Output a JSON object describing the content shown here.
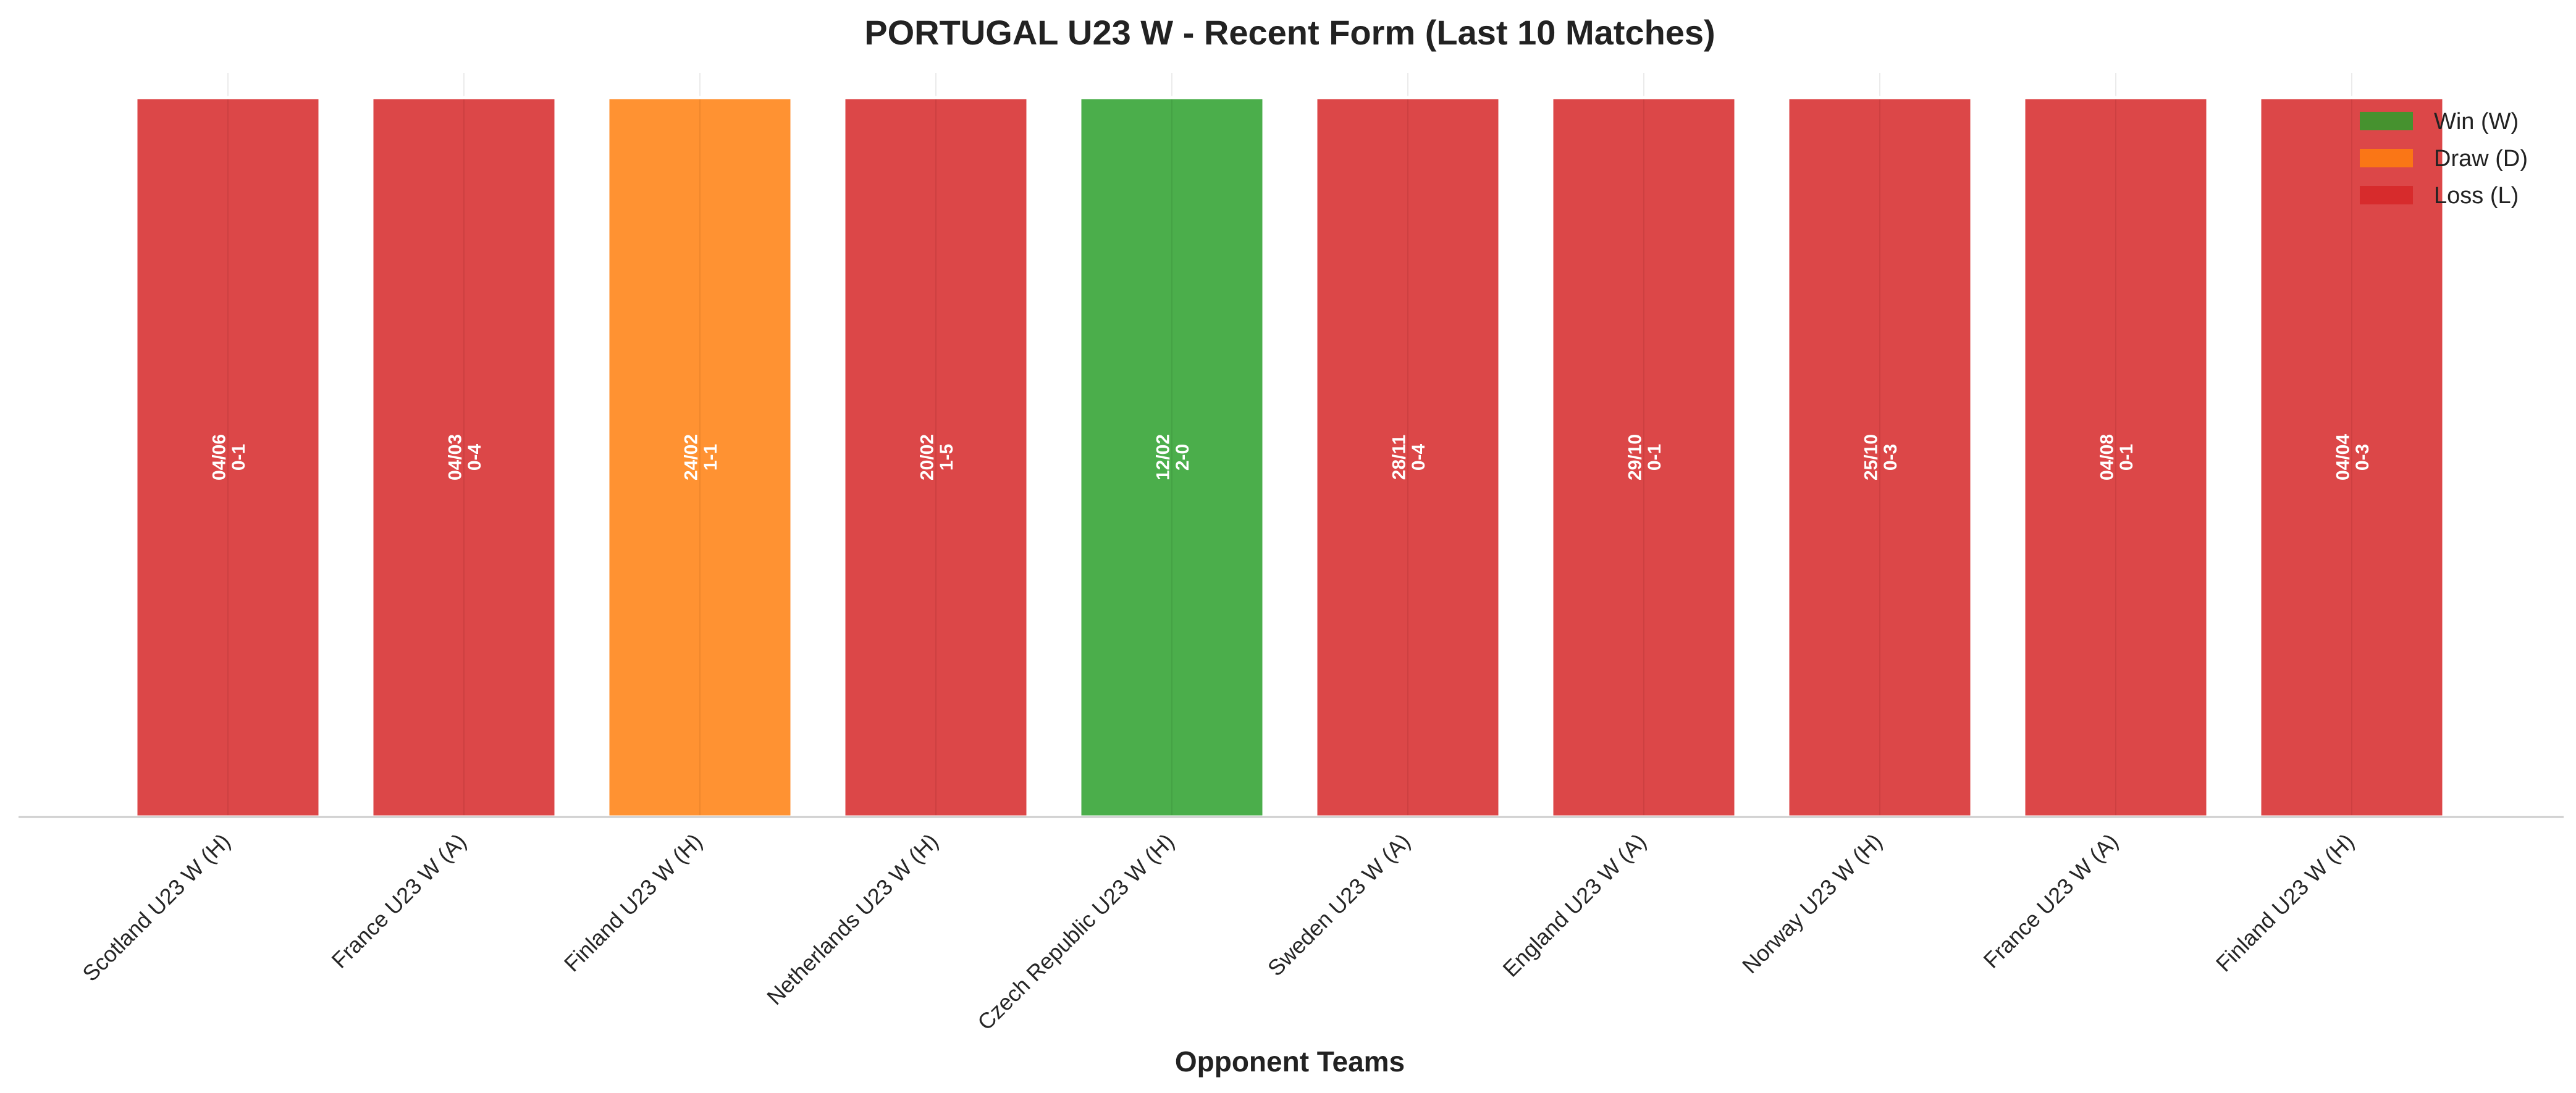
{
  "chart_data": {
    "type": "bar",
    "title": "PORTUGAL U23 W - Recent Form (Last 10 Matches)",
    "xlabel": "Opponent Teams",
    "ylabel": "",
    "categories": [
      "Scotland U23 W (H)",
      "France U23 W (A)",
      "Finland U23 W (H)",
      "Netherlands U23 W (H)",
      "Czech Republic U23 W (H)",
      "Sweden U23 W (A)",
      "England U23 W (A)",
      "Norway U23 W (H)",
      "France U23 W (A)",
      "Finland U23 W (H)"
    ],
    "values": [
      1,
      1,
      1,
      1,
      1,
      1,
      1,
      1,
      1,
      1
    ],
    "results": [
      "L",
      "L",
      "D",
      "L",
      "W",
      "L",
      "L",
      "L",
      "L",
      "L"
    ],
    "dates": [
      "04/06",
      "04/03",
      "24/02",
      "20/02",
      "12/02",
      "28/11",
      "29/10",
      "25/10",
      "04/08",
      "04/04"
    ],
    "scores": [
      "0-1",
      "0-4",
      "1-1",
      "1-5",
      "2-0",
      "0-4",
      "0-1",
      "0-3",
      "0-1",
      "0-3"
    ],
    "colors": {
      "W": "#2ca02c",
      "D": "#ff7f0e",
      "L": "#d62728"
    },
    "legend": {
      "position": "top-right",
      "entries": [
        {
          "key": "W",
          "label": "Win (W)"
        },
        {
          "key": "D",
          "label": "Draw (D)"
        },
        {
          "key": "L",
          "label": "Loss (L)"
        }
      ]
    },
    "ylim": [
      0,
      1
    ],
    "grid": true
  }
}
